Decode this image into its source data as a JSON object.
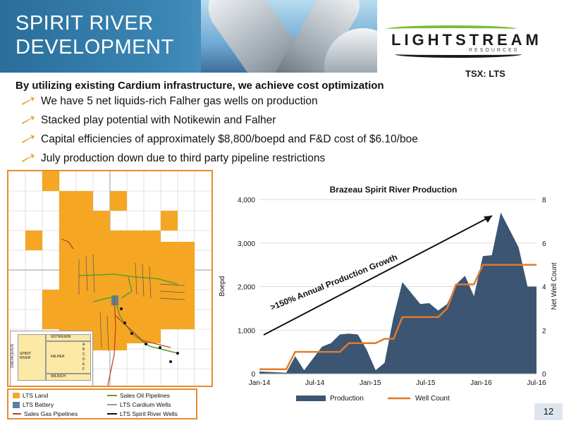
{
  "header": {
    "title_line1": "SPIRIT RIVER",
    "title_line2": "DEVELOPMENT",
    "logo_name": "LIGHTSTREAM",
    "logo_sub": "RESOURCES",
    "ticker": "TSX: LTS"
  },
  "content": {
    "subtitle": "By utilizing existing Cardium infrastructure, we achieve cost optimization",
    "bullets": [
      "We have 5 net liquids-rich Falher gas wells on production",
      "Stacked play potential with Notikewin and Falher",
      "Capital efficiencies of approximately $8,800/boepd and F&D cost of $6.10/boe",
      "July production down due to third party pipeline restrictions"
    ]
  },
  "map": {
    "inset_labels": {
      "cretaceous": "CRETACEOUS",
      "notikewin": "NOTIKEWIN",
      "spirit_river": "SPIRIT RIVER",
      "falher": "FALHER",
      "wilrich": "WILRICH",
      "sub_letters": [
        "A",
        "B",
        "C",
        "D",
        "E",
        "F"
      ]
    }
  },
  "legend": {
    "lts_land": "LTS Land",
    "lts_battery": "LTS Battery",
    "sales_gas": "Sales Gas Pipelines",
    "sales_oil": "Sales Oil Pipelines",
    "cardium_wells": "LTS Cardium Wells",
    "spirit_river_wells": "LTS Spirit River Wells",
    "colors": {
      "land": "#f5a623",
      "battery": "#5b7fa6",
      "gas": "#c0392b",
      "oil": "#5aa02c"
    }
  },
  "chart_data": {
    "type": "area",
    "title": "Brazeau Spirit River Production",
    "ylabel": "Boepd",
    "y2label": "Net Well Count",
    "ylim": [
      0,
      4000
    ],
    "y2lim": [
      0,
      8
    ],
    "yticks": [
      "0",
      "1,000",
      "2,000",
      "3,000",
      "4,000"
    ],
    "y2ticks": [
      "0",
      "2",
      "4",
      "6",
      "8"
    ],
    "xticks": [
      "Jan-14",
      "Jul-14",
      "Jan-15",
      "Jul-15",
      "Jan-16",
      "Jul-16"
    ],
    "x": [
      0,
      1,
      2,
      3,
      4,
      5,
      6,
      7,
      8,
      9,
      10,
      11,
      12,
      13,
      14,
      15,
      16,
      17,
      18,
      19,
      20,
      21,
      22,
      23,
      24,
      25,
      26,
      27,
      28,
      29,
      30,
      31
    ],
    "series": [
      {
        "name": "Production",
        "kind": "area",
        "values": [
          50,
          40,
          30,
          20,
          400,
          80,
          350,
          620,
          700,
          900,
          920,
          900,
          550,
          80,
          250,
          1300,
          2100,
          1850,
          1600,
          1620,
          1450,
          1600,
          2050,
          2250,
          1780,
          2700,
          2720,
          3700,
          3300,
          2900,
          2000,
          2000
        ]
      },
      {
        "name": "Well Count",
        "kind": "line",
        "values": [
          0.2,
          0.2,
          0.2,
          0.2,
          1,
          1,
          1,
          1,
          1,
          1,
          1.4,
          1.4,
          1.4,
          1.4,
          1.6,
          1.6,
          2.6,
          2.6,
          2.6,
          2.6,
          2.6,
          3,
          4.1,
          4.1,
          4.1,
          5,
          5,
          5,
          5,
          5,
          5,
          5
        ]
      }
    ],
    "annotation": ">150% Annual Production Growth",
    "legend_position": "bottom",
    "colors": {
      "Production": "#3b5573",
      "Well Count": "#e07b2a"
    }
  },
  "page_number": "12"
}
